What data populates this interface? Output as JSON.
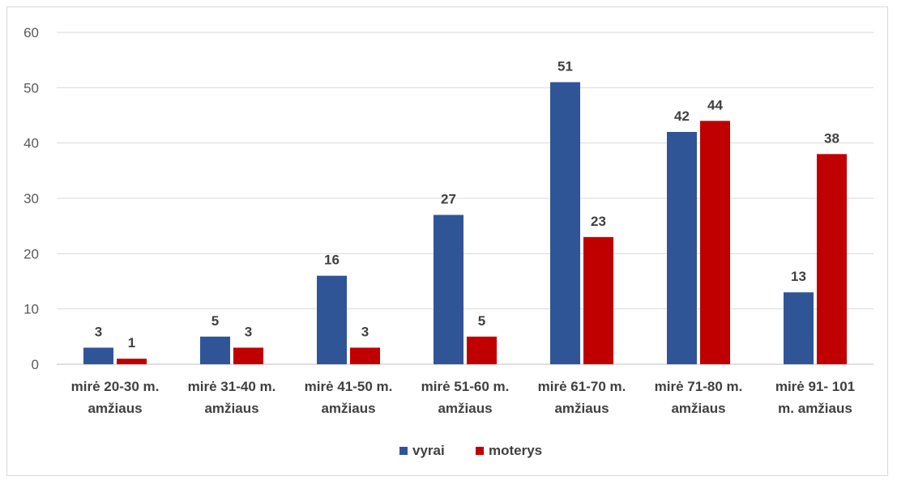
{
  "chart_data": {
    "type": "bar",
    "categories": [
      [
        "mirė 20-30 m.",
        "amžiaus"
      ],
      [
        "mirė 31-40 m.",
        "amžiaus"
      ],
      [
        "mirė 41-50 m.",
        "amžiaus"
      ],
      [
        "mirė 51-60 m.",
        "amžiaus"
      ],
      [
        "mirė 61-70 m.",
        "amžiaus"
      ],
      [
        "mirė 71-80 m.",
        "amžiaus"
      ],
      [
        "mirė 91- 101",
        "m. amžiaus"
      ]
    ],
    "series": [
      {
        "name": "vyrai",
        "color": "#2f5597",
        "values": [
          3,
          5,
          16,
          27,
          51,
          42,
          13
        ]
      },
      {
        "name": "moterys",
        "color": "#c00000",
        "values": [
          1,
          3,
          3,
          5,
          23,
          44,
          38
        ]
      }
    ],
    "ylim": [
      0,
      60
    ],
    "yticks": [
      0,
      10,
      20,
      30,
      40,
      50,
      60
    ],
    "grid": true,
    "legend_position": "bottom",
    "title": "",
    "xlabel": "",
    "ylabel": ""
  }
}
